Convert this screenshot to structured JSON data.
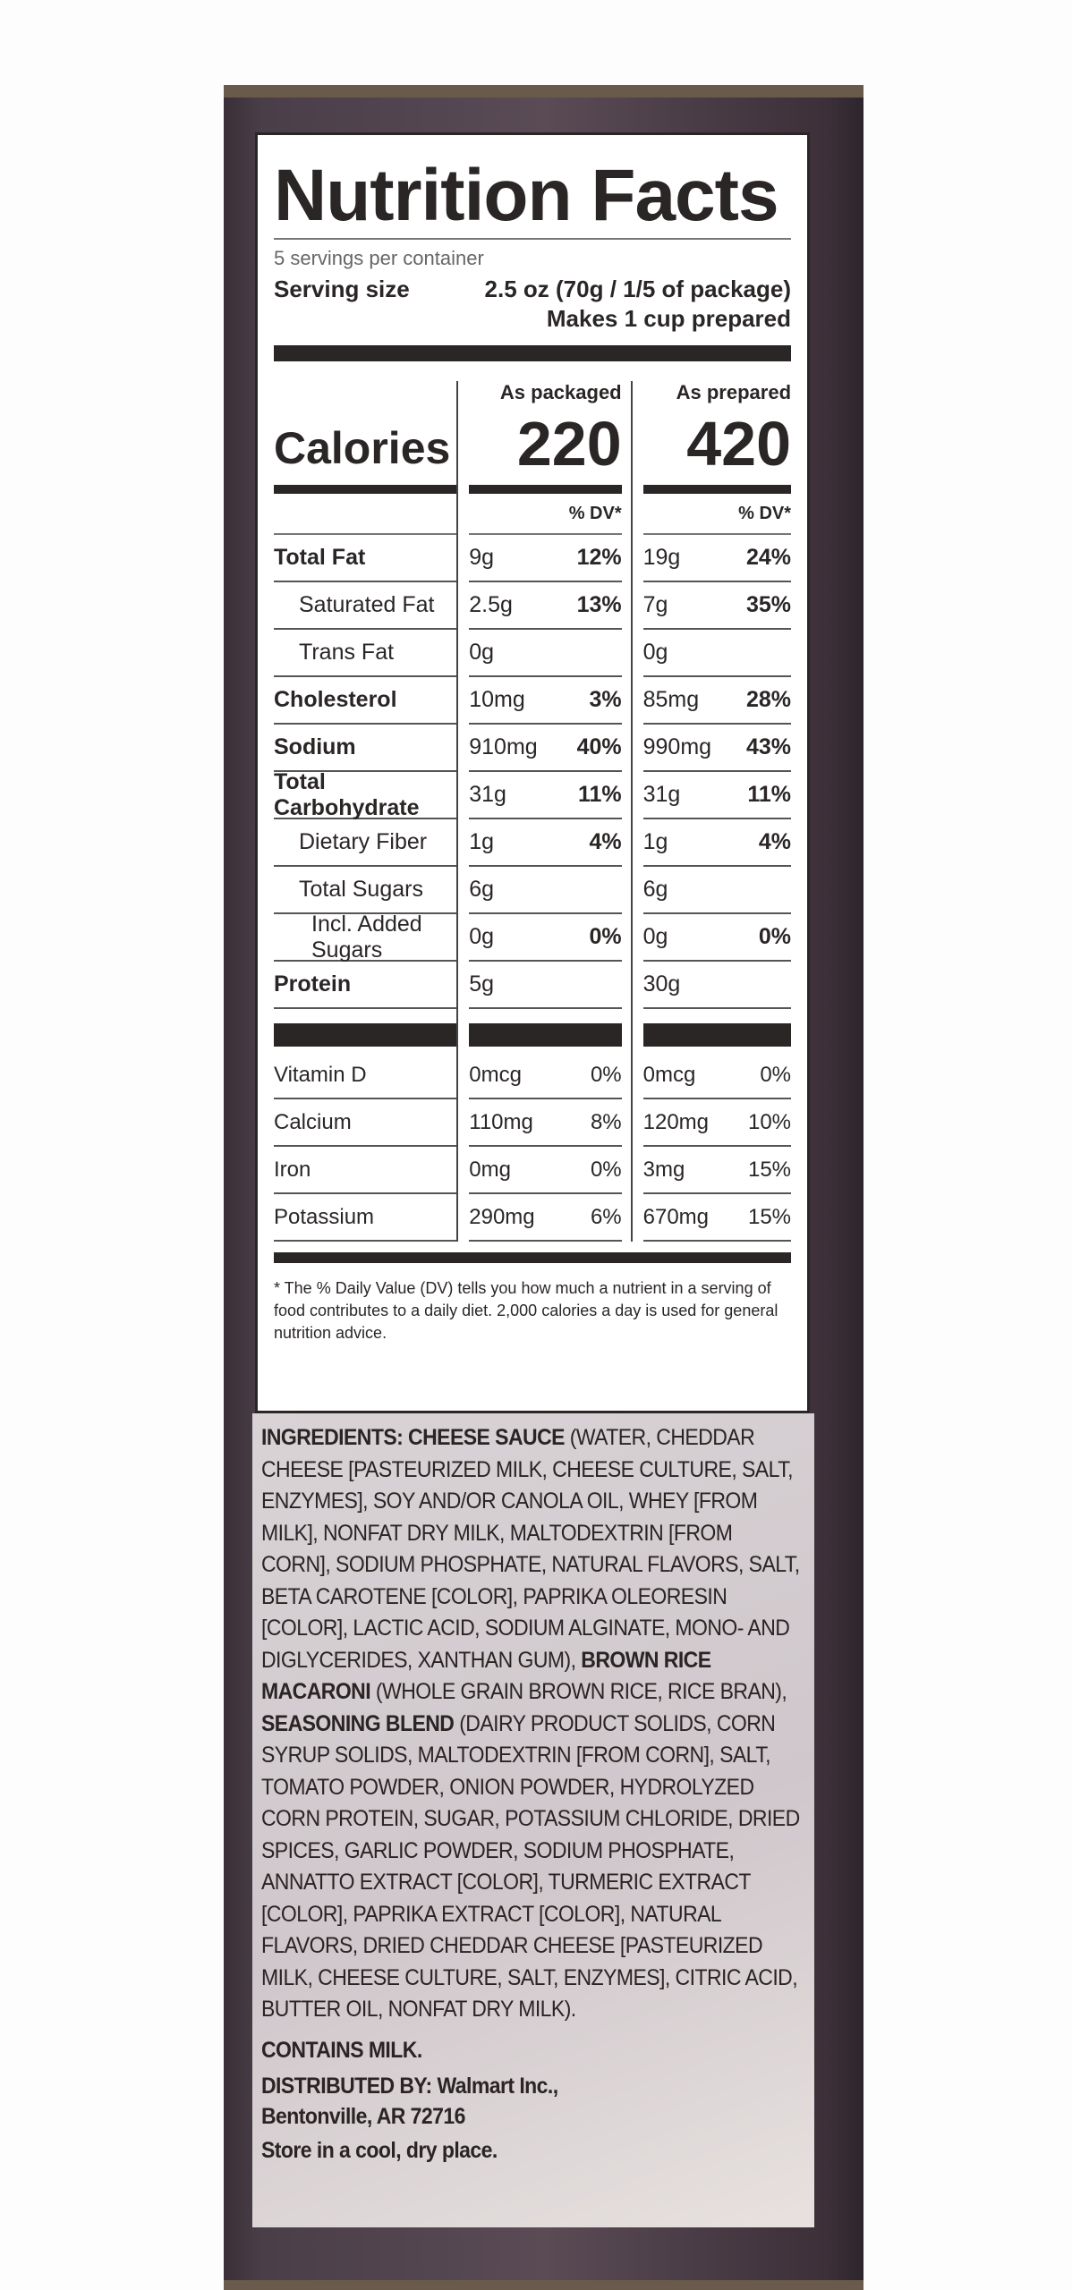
{
  "title": "Nutrition Facts",
  "servings_per_container": "5 servings per container",
  "serving_size_label": "Serving size",
  "serving_size_value": "2.5 oz (70g / 1/5 of package)",
  "makes": "Makes 1 cup prepared",
  "columns": [
    {
      "header": "As packaged",
      "calories": "220"
    },
    {
      "header": "As prepared",
      "calories": "420"
    }
  ],
  "calories_label": "Calories",
  "dv_header": "% DV*",
  "nutrients": [
    {
      "name": "Total Fat",
      "bold": true,
      "indent": 0,
      "packaged": "9g",
      "packaged_dv": "12%",
      "prepared": "19g",
      "prepared_dv": "24%"
    },
    {
      "name": "Saturated Fat",
      "bold": false,
      "indent": 1,
      "packaged": "2.5g",
      "packaged_dv": "13%",
      "prepared": "7g",
      "prepared_dv": "35%"
    },
    {
      "name": "Trans Fat",
      "bold": false,
      "indent": 1,
      "packaged": "0g",
      "packaged_dv": "",
      "prepared": "0g",
      "prepared_dv": ""
    },
    {
      "name": "Cholesterol",
      "bold": true,
      "indent": 0,
      "packaged": "10mg",
      "packaged_dv": "3%",
      "prepared": "85mg",
      "prepared_dv": "28%"
    },
    {
      "name": "Sodium",
      "bold": true,
      "indent": 0,
      "packaged": "910mg",
      "packaged_dv": "40%",
      "prepared": "990mg",
      "prepared_dv": "43%"
    },
    {
      "name": "Total Carbohydrate",
      "bold": true,
      "indent": 0,
      "packaged": "31g",
      "packaged_dv": "11%",
      "prepared": "31g",
      "prepared_dv": "11%"
    },
    {
      "name": "Dietary Fiber",
      "bold": false,
      "indent": 1,
      "packaged": "1g",
      "packaged_dv": "4%",
      "prepared": "1g",
      "prepared_dv": "4%"
    },
    {
      "name": "Total Sugars",
      "bold": false,
      "indent": 1,
      "packaged": "6g",
      "packaged_dv": "",
      "prepared": "6g",
      "prepared_dv": ""
    },
    {
      "name": "Incl. Added Sugars",
      "bold": false,
      "indent": 2,
      "packaged": "0g",
      "packaged_dv": "0%",
      "prepared": "0g",
      "prepared_dv": "0%"
    },
    {
      "name": "Protein",
      "bold": true,
      "indent": 0,
      "packaged": "5g",
      "packaged_dv": "",
      "prepared": "30g",
      "prepared_dv": ""
    }
  ],
  "vitamins": [
    {
      "name": "Vitamin D",
      "packaged": "0mcg",
      "packaged_dv": "0%",
      "prepared": "0mcg",
      "prepared_dv": "0%"
    },
    {
      "name": "Calcium",
      "packaged": "110mg",
      "packaged_dv": "8%",
      "prepared": "120mg",
      "prepared_dv": "10%"
    },
    {
      "name": "Iron",
      "packaged": "0mg",
      "packaged_dv": "0%",
      "prepared": "3mg",
      "prepared_dv": "15%"
    },
    {
      "name": "Potassium",
      "packaged": "290mg",
      "packaged_dv": "6%",
      "prepared": "670mg",
      "prepared_dv": "15%"
    }
  ],
  "footnote": "* The % Daily Value (DV) tells you how much a nutrient in a serving of food contributes to a daily diet. 2,000 calories a day is used for general nutrition advice.",
  "ingredients": [
    {
      "text": "INGREDIENTS: CHEESE SAUCE",
      "bold": true
    },
    {
      "text": " (WATER, CHEDDAR CHEESE [PASTEURIZED MILK, CHEESE CULTURE, SALT, ENZYMES], SOY AND/OR CANOLA OIL, WHEY [FROM MILK], NONFAT DRY MILK, MALTODEXTRIN [FROM CORN], SODIUM PHOSPHATE, NATURAL FLAVORS, SALT, BETA CAROTENE [COLOR], PAPRIKA OLEORESIN [COLOR], LACTIC ACID, SODIUM ALGINATE, MONO- AND DIGLYCERIDES, XANTHAN GUM), ",
      "bold": false
    },
    {
      "text": "BROWN RICE MACARONI",
      "bold": true
    },
    {
      "text": " (WHOLE GRAIN BROWN RICE, RICE BRAN), ",
      "bold": false
    },
    {
      "text": "SEASONING BLEND",
      "bold": true
    },
    {
      "text": " (DAIRY PRODUCT SOLIDS, CORN SYRUP SOLIDS, MALTODEXTRIN [FROM CORN], SALT, TOMATO POWDER, ONION POWDER, HYDROLYZED CORN PROTEIN, SUGAR, POTASSIUM CHLORIDE, DRIED SPICES, GARLIC POWDER, SODIUM PHOSPHATE, ANNATTO EXTRACT [COLOR], TURMERIC EXTRACT [COLOR], PAPRIKA EXTRACT [COLOR], NATURAL FLAVORS, DRIED CHEDDAR CHEESE [PASTEURIZED MILK, CHEESE CULTURE, SALT, ENZYMES], CITRIC ACID, BUTTER OIL, NONFAT DRY MILK).",
      "bold": false
    }
  ],
  "contains": "CONTAINS MILK.",
  "distributed_line1": "DISTRIBUTED BY: Walmart Inc.,",
  "distributed_line2": "Bentonville, AR 72716",
  "storage": "Store in a cool, dry place."
}
